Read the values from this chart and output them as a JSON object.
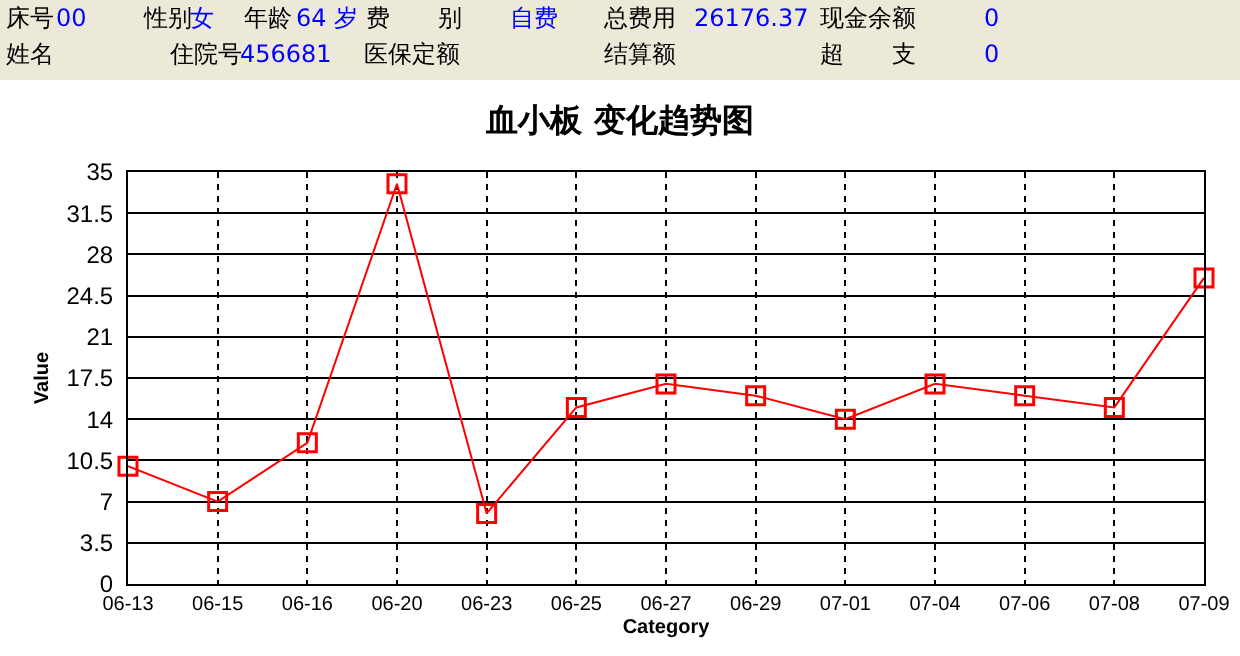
{
  "chart_data": {
    "type": "line",
    "title": "血小板 变化趋势图",
    "xlabel": "Category",
    "ylabel": "Value",
    "categories": [
      "06-13",
      "06-15",
      "06-16",
      "06-20",
      "06-23",
      "06-25",
      "06-27",
      "06-29",
      "07-01",
      "07-04",
      "07-06",
      "07-08",
      "07-09"
    ],
    "series": [
      {
        "color": "#ff0000",
        "values": [
          10,
          7,
          12,
          34,
          6,
          15,
          17,
          16,
          14,
          17,
          16,
          15,
          26
        ]
      }
    ],
    "ylim": [
      0,
      35
    ],
    "yticks": [
      0,
      3.5,
      7,
      10.5,
      14,
      17.5,
      21,
      24.5,
      28,
      31.5,
      35
    ],
    "grid": true,
    "marker": "square",
    "line_style": "solid",
    "annotations": [
      "床号",
      "00",
      "性别",
      "女",
      "年龄",
      "64 岁",
      "费　　别",
      "自费",
      "总费用",
      "26176.37",
      "现金余额",
      "0",
      "姓名",
      "住院号",
      "456681",
      "医保定额",
      "结算额",
      "超　　支",
      "0"
    ]
  }
}
